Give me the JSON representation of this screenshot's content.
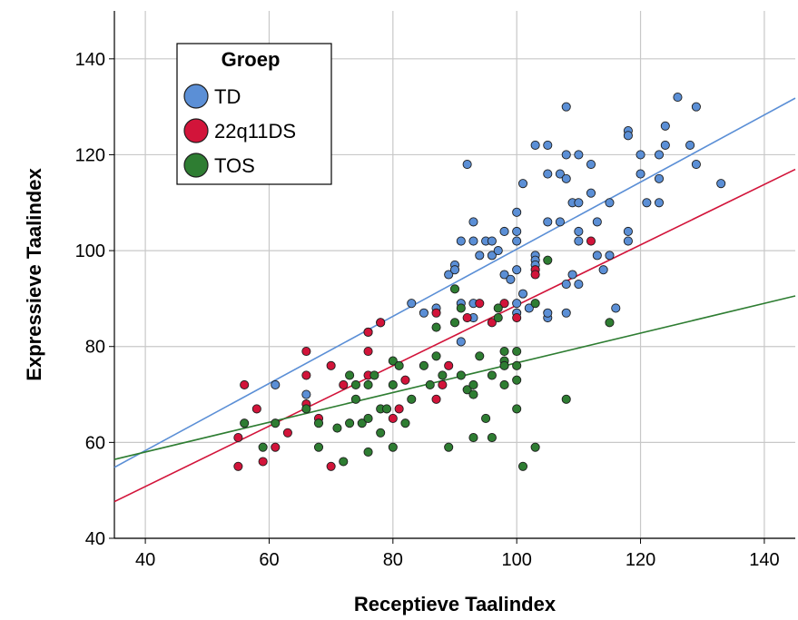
{
  "chart_data": {
    "type": "scatter",
    "title": "",
    "xlabel": "Receptieve Taalindex",
    "ylabel": "Expressieve Taalindex",
    "xlim": [
      35,
      145
    ],
    "ylim": [
      40,
      150
    ],
    "xticks": [
      40,
      60,
      80,
      100,
      120,
      140
    ],
    "yticks": [
      40,
      60,
      80,
      100,
      120,
      140
    ],
    "grid": true,
    "legend": {
      "title": "Groep",
      "placement": "top-left"
    },
    "series": [
      {
        "name": "TD",
        "color": "#5b8fd6",
        "fit": {
          "slope": 0.7,
          "intercept": 30.3
        },
        "points": [
          [
            66,
            70
          ],
          [
            61,
            72
          ],
          [
            76,
            83
          ],
          [
            78,
            85
          ],
          [
            83,
            89
          ],
          [
            85,
            87
          ],
          [
            87,
            88
          ],
          [
            89,
            95
          ],
          [
            90,
            97
          ],
          [
            90,
            96
          ],
          [
            91,
            102
          ],
          [
            92,
            118
          ],
          [
            93,
            106
          ],
          [
            93,
            102
          ],
          [
            91,
            89
          ],
          [
            93,
            89
          ],
          [
            93,
            86
          ],
          [
            91,
            81
          ],
          [
            95,
            102
          ],
          [
            94,
            99
          ],
          [
            96,
            99
          ],
          [
            96,
            102
          ],
          [
            97,
            100
          ],
          [
            98,
            104
          ],
          [
            98,
            95
          ],
          [
            99,
            94
          ],
          [
            100,
            108
          ],
          [
            100,
            104
          ],
          [
            100,
            102
          ],
          [
            101,
            114
          ],
          [
            100,
            96
          ],
          [
            100,
            89
          ],
          [
            100,
            87
          ],
          [
            101,
            91
          ],
          [
            102,
            88
          ],
          [
            103,
            99
          ],
          [
            103,
            98
          ],
          [
            103,
            97
          ],
          [
            103,
            122
          ],
          [
            105,
            122
          ],
          [
            105,
            116
          ],
          [
            105,
            106
          ],
          [
            105,
            86
          ],
          [
            105,
            87
          ],
          [
            107,
            116
          ],
          [
            107,
            106
          ],
          [
            108,
            130
          ],
          [
            108,
            120
          ],
          [
            108,
            115
          ],
          [
            108,
            93
          ],
          [
            108,
            87
          ],
          [
            109,
            110
          ],
          [
            109,
            95
          ],
          [
            110,
            120
          ],
          [
            110,
            110
          ],
          [
            110,
            104
          ],
          [
            110,
            102
          ],
          [
            110,
            93
          ],
          [
            112,
            118
          ],
          [
            112,
            112
          ],
          [
            113,
            106
          ],
          [
            113,
            99
          ],
          [
            114,
            96
          ],
          [
            115,
            110
          ],
          [
            115,
            99
          ],
          [
            116,
            88
          ],
          [
            118,
            125
          ],
          [
            118,
            124
          ],
          [
            118,
            104
          ],
          [
            118,
            102
          ],
          [
            120,
            120
          ],
          [
            120,
            116
          ],
          [
            121,
            110
          ],
          [
            123,
            120
          ],
          [
            123,
            115
          ],
          [
            123,
            110
          ],
          [
            124,
            126
          ],
          [
            124,
            122
          ],
          [
            126,
            132
          ],
          [
            128,
            122
          ],
          [
            129,
            130
          ],
          [
            129,
            118
          ],
          [
            133,
            114
          ]
        ]
      },
      {
        "name": "22q11DS",
        "color": "#d2143a",
        "fit": {
          "slope": 0.63,
          "intercept": 25.6
        },
        "points": [
          [
            55,
            55
          ],
          [
            55,
            61
          ],
          [
            56,
            72
          ],
          [
            58,
            67
          ],
          [
            59,
            56
          ],
          [
            61,
            59
          ],
          [
            63,
            62
          ],
          [
            66,
            79
          ],
          [
            66,
            74
          ],
          [
            66,
            68
          ],
          [
            68,
            65
          ],
          [
            70,
            76
          ],
          [
            70,
            55
          ],
          [
            72,
            72
          ],
          [
            76,
            79
          ],
          [
            76,
            74
          ],
          [
            76,
            83
          ],
          [
            78,
            85
          ],
          [
            80,
            65
          ],
          [
            81,
            67
          ],
          [
            82,
            73
          ],
          [
            87,
            87
          ],
          [
            87,
            69
          ],
          [
            88,
            72
          ],
          [
            89,
            76
          ],
          [
            92,
            86
          ],
          [
            94,
            89
          ],
          [
            96,
            85
          ],
          [
            98,
            89
          ],
          [
            100,
            86
          ],
          [
            103,
            96
          ],
          [
            103,
            95
          ],
          [
            112,
            102
          ]
        ]
      },
      {
        "name": "TOS",
        "color": "#2e7d32",
        "fit": {
          "slope": 0.31,
          "intercept": 45.6
        },
        "points": [
          [
            56,
            64
          ],
          [
            59,
            59
          ],
          [
            61,
            64
          ],
          [
            66,
            67
          ],
          [
            68,
            64
          ],
          [
            68,
            59
          ],
          [
            71,
            63
          ],
          [
            72,
            56
          ],
          [
            73,
            74
          ],
          [
            74,
            72
          ],
          [
            73,
            64
          ],
          [
            74,
            69
          ],
          [
            75,
            64
          ],
          [
            76,
            72
          ],
          [
            77,
            74
          ],
          [
            76,
            65
          ],
          [
            76,
            58
          ],
          [
            78,
            67
          ],
          [
            79,
            67
          ],
          [
            78,
            62
          ],
          [
            80,
            77
          ],
          [
            80,
            72
          ],
          [
            80,
            59
          ],
          [
            81,
            76
          ],
          [
            82,
            64
          ],
          [
            83,
            69
          ],
          [
            85,
            76
          ],
          [
            86,
            72
          ],
          [
            87,
            78
          ],
          [
            87,
            84
          ],
          [
            88,
            74
          ],
          [
            89,
            59
          ],
          [
            90,
            92
          ],
          [
            90,
            85
          ],
          [
            91,
            88
          ],
          [
            91,
            74
          ],
          [
            92,
            71
          ],
          [
            93,
            72
          ],
          [
            93,
            70
          ],
          [
            93,
            61
          ],
          [
            94,
            78
          ],
          [
            95,
            65
          ],
          [
            96,
            61
          ],
          [
            96,
            74
          ],
          [
            97,
            86
          ],
          [
            97,
            88
          ],
          [
            98,
            79
          ],
          [
            98,
            77
          ],
          [
            98,
            76
          ],
          [
            98,
            72
          ],
          [
            100,
            79
          ],
          [
            100,
            76
          ],
          [
            100,
            73
          ],
          [
            100,
            67
          ],
          [
            101,
            55
          ],
          [
            103,
            89
          ],
          [
            103,
            59
          ],
          [
            105,
            98
          ],
          [
            108,
            69
          ],
          [
            115,
            85
          ]
        ]
      }
    ]
  }
}
